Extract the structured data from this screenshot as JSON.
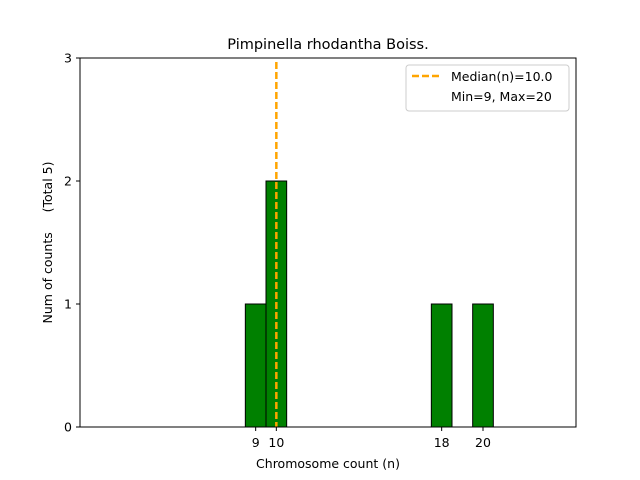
{
  "chart_data": {
    "type": "bar",
    "title": "Pimpinella rhodantha Boiss.",
    "xlabel": "Chromosome count (n)",
    "ylabel": "Num of counts     (Total 5)",
    "xlim": [
      0.5,
      24.5
    ],
    "ylim": [
      0,
      3
    ],
    "x_ticks": [
      9,
      10,
      18,
      20
    ],
    "y_ticks": [
      0,
      1,
      2,
      3
    ],
    "bin_width": 1,
    "bars": [
      {
        "x": 9,
        "value": 1
      },
      {
        "x": 10,
        "value": 2
      },
      {
        "x": 18,
        "value": 1
      },
      {
        "x": 20,
        "value": 1
      }
    ],
    "baseline_range": [
      0.5,
      23.5
    ],
    "median": 10.0,
    "min": 9,
    "max": 20,
    "legend": {
      "placement": "top-right",
      "median_label": "Median(n)=10.0",
      "range_label": "Min=9, Max=20"
    },
    "colors": {
      "bar_fill": "#008000",
      "bar_edge": "#000000",
      "median_line": "#FFA500"
    }
  }
}
